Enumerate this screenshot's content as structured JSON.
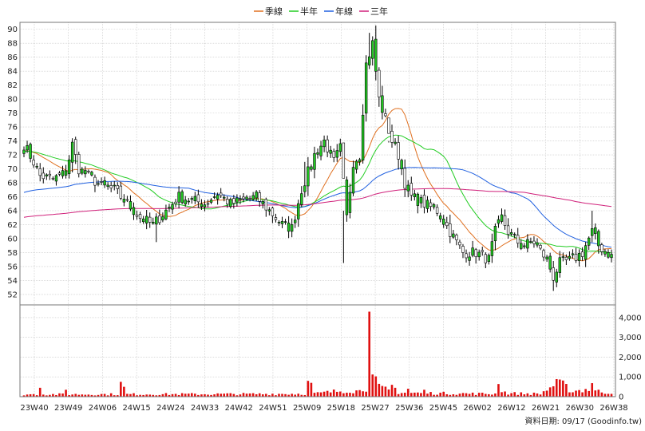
{
  "chart_data": {
    "type": "candlestick",
    "legend": [
      {
        "label": "季線",
        "color": "#e07020"
      },
      {
        "label": "半年",
        "color": "#22cc22"
      },
      {
        "label": "年線",
        "color": "#2060e0"
      },
      {
        "label": "三年",
        "color": "#d0207a"
      }
    ],
    "x_labels": [
      "23W40",
      "23W49",
      "24W06",
      "24W15",
      "24W24",
      "24W33",
      "24W42",
      "24W51",
      "25W09",
      "25W18",
      "25W27",
      "25W36",
      "25W45",
      "26W02",
      "26W12",
      "26W21",
      "26W30",
      "26W38"
    ],
    "price_axis": {
      "min": 52,
      "max": 90,
      "step": 2,
      "ylim": [
        50.5,
        91
      ]
    },
    "volume_axis": {
      "ticks": [
        "0",
        "1,000",
        "2,000",
        "3,000",
        "4,000"
      ],
      "max": 4400
    },
    "price_anchors": [
      [
        0,
        73.5
      ],
      [
        3,
        71
      ],
      [
        5,
        69
      ],
      [
        9,
        68.5
      ],
      [
        13,
        69.5
      ],
      [
        15,
        73.5
      ],
      [
        17,
        70
      ],
      [
        20,
        69
      ],
      [
        24,
        67.5
      ],
      [
        28,
        67
      ],
      [
        32,
        65
      ],
      [
        36,
        63
      ],
      [
        40,
        62
      ],
      [
        44,
        64
      ],
      [
        48,
        66
      ],
      [
        52,
        65.5
      ],
      [
        56,
        65
      ],
      [
        60,
        66.5
      ],
      [
        64,
        65
      ],
      [
        68,
        65.5
      ],
      [
        72,
        66
      ],
      [
        76,
        64
      ],
      [
        80,
        62
      ],
      [
        83,
        61.5
      ],
      [
        86,
        67
      ],
      [
        90,
        72
      ],
      [
        93,
        74
      ],
      [
        96,
        71
      ],
      [
        98,
        73
      ],
      [
        100,
        63
      ],
      [
        102,
        71
      ],
      [
        104,
        72
      ],
      [
        106,
        85
      ],
      [
        108,
        88
      ],
      [
        110,
        80
      ],
      [
        112,
        77
      ],
      [
        114,
        74
      ],
      [
        116,
        72
      ],
      [
        118,
        68
      ],
      [
        120,
        66
      ],
      [
        124,
        65
      ],
      [
        128,
        64
      ],
      [
        132,
        61
      ],
      [
        136,
        58
      ],
      [
        140,
        58
      ],
      [
        144,
        57
      ],
      [
        146,
        61
      ],
      [
        148,
        63
      ],
      [
        150,
        61
      ],
      [
        154,
        59
      ],
      [
        158,
        59.5
      ],
      [
        162,
        57
      ],
      [
        164,
        54.5
      ],
      [
        166,
        56.5
      ],
      [
        170,
        57
      ],
      [
        173,
        58
      ],
      [
        176,
        61
      ],
      [
        178,
        59
      ],
      [
        182,
        57.5
      ]
    ],
    "bull_pattern": [
      0,
      1,
      1,
      0,
      1,
      0,
      0,
      1,
      0,
      1,
      1,
      0,
      0,
      1,
      0,
      1,
      0,
      0,
      1,
      1,
      0,
      1,
      0,
      0
    ],
    "volume_base": [
      [
        0,
        120
      ],
      [
        70,
        140
      ],
      [
        90,
        160
      ],
      [
        100,
        350
      ],
      [
        104,
        300
      ],
      [
        106,
        500
      ],
      [
        107,
        4300
      ],
      [
        108,
        1000
      ],
      [
        110,
        500
      ],
      [
        114,
        250
      ],
      [
        120,
        200
      ],
      [
        130,
        180
      ],
      [
        140,
        160
      ],
      [
        146,
        150
      ],
      [
        147,
        1100
      ],
      [
        148,
        300
      ],
      [
        150,
        180
      ],
      [
        160,
        150
      ],
      [
        164,
        600
      ],
      [
        166,
        700
      ],
      [
        168,
        500
      ],
      [
        170,
        300
      ],
      [
        175,
        400
      ],
      [
        176,
        800
      ],
      [
        177,
        300
      ],
      [
        182,
        200
      ]
    ],
    "volume_spikes": [
      [
        5,
        450
      ],
      [
        13,
        350
      ],
      [
        30,
        750
      ],
      [
        31,
        500
      ],
      [
        88,
        800
      ],
      [
        89,
        700
      ],
      [
        114,
        600
      ],
      [
        115,
        450
      ],
      [
        119,
        400
      ],
      [
        124,
        350
      ]
    ],
    "source_label": "資料日期: 09/17  (Goodinfo.tw)"
  }
}
